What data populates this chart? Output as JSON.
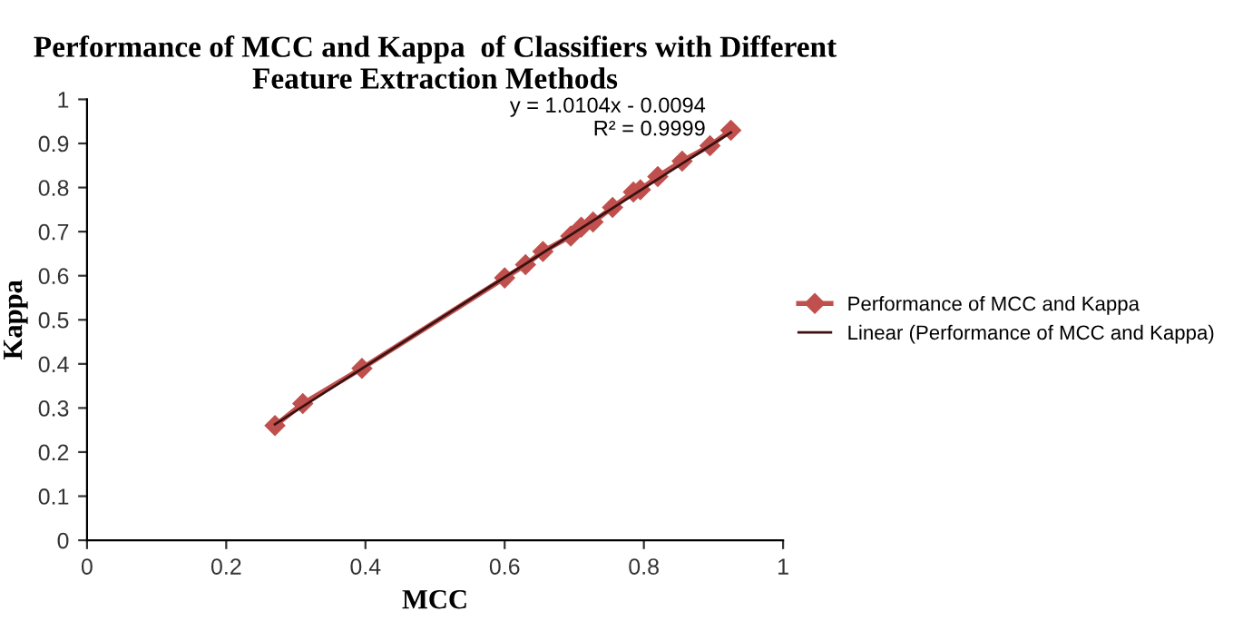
{
  "chart_data": {
    "type": "line",
    "title": "Performance of MCC and Kappa  of Classifiers with Different Feature Extraction Methods",
    "xlabel": "MCC",
    "ylabel": "Kappa",
    "xlim": [
      0,
      1
    ],
    "xticks": [
      0,
      0.2,
      0.4,
      0.6,
      0.8,
      1
    ],
    "ylim": [
      0,
      1
    ],
    "yticks": [
      0,
      0.1,
      0.2,
      0.3,
      0.4,
      0.5,
      0.6,
      0.7,
      0.8,
      0.9,
      1
    ],
    "grid": false,
    "legend": "right",
    "series": [
      {
        "name": "Performance of MCC and Kappa",
        "color": "#c0504d",
        "marker": "diamond",
        "x": [
          0.27,
          0.31,
          0.395,
          0.6,
          0.63,
          0.655,
          0.695,
          0.71,
          0.727,
          0.755,
          0.785,
          0.795,
          0.82,
          0.855,
          0.895,
          0.925
        ],
        "values": [
          0.26,
          0.31,
          0.39,
          0.595,
          0.625,
          0.655,
          0.69,
          0.71,
          0.722,
          0.755,
          0.79,
          0.795,
          0.825,
          0.86,
          0.895,
          0.93
        ]
      },
      {
        "name": "Linear (Performance of MCC and Kappa)",
        "color": "#3b1212",
        "marker": "none",
        "x": [
          0.27,
          0.925
        ],
        "values": [
          0.263,
          0.925
        ]
      }
    ],
    "annotations": [
      {
        "text": "y = 1.0104x - 0.0094\nR² = 0.9999",
        "x": 0.925,
        "y": 0.925
      }
    ]
  }
}
